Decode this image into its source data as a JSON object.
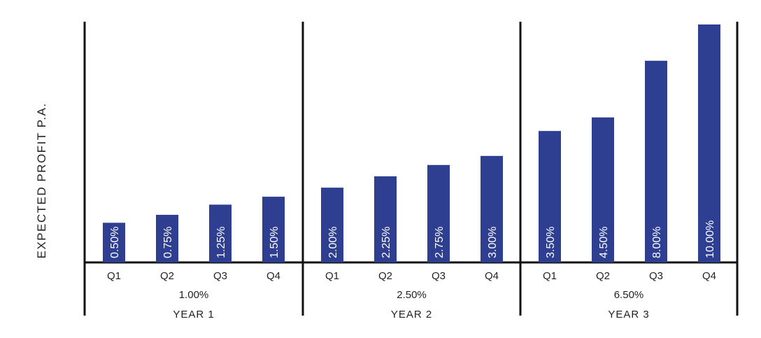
{
  "chart_data": {
    "type": "bar",
    "ylabel": "EXPECTED PROFIT P.A.",
    "bar_color": "#2e3f92",
    "axis_color": "#111111",
    "label_color": "#ffffff",
    "ylim": [
      0,
      10.5
    ],
    "groups": [
      {
        "name": "YEAR 1",
        "total": "1.00%",
        "categories": [
          "Q1",
          "Q2",
          "Q3",
          "Q4"
        ],
        "values": [
          0.5,
          0.75,
          1.25,
          1.5
        ],
        "labels": [
          "0.50%",
          "0.75%",
          "1.25%",
          "1.50%"
        ],
        "heights": [
          1.75,
          2.1,
          2.55,
          2.9
        ]
      },
      {
        "name": "YEAR 2",
        "total": "2.50%",
        "categories": [
          "Q1",
          "Q2",
          "Q3",
          "Q4"
        ],
        "values": [
          2.0,
          2.25,
          2.75,
          3.0
        ],
        "labels": [
          "2.00%",
          "2.25%",
          "2.75%",
          "3.00%"
        ],
        "heights": [
          3.3,
          3.8,
          4.3,
          4.7
        ]
      },
      {
        "name": "YEAR 3",
        "total": "6.50%",
        "categories": [
          "Q1",
          "Q2",
          "Q3",
          "Q4"
        ],
        "values": [
          3.5,
          4.5,
          8.0,
          10.0
        ],
        "labels": [
          "3.50%",
          "4.50%",
          "8.00%",
          "10.00%"
        ],
        "heights": [
          5.8,
          6.4,
          8.9,
          10.5
        ]
      }
    ]
  }
}
